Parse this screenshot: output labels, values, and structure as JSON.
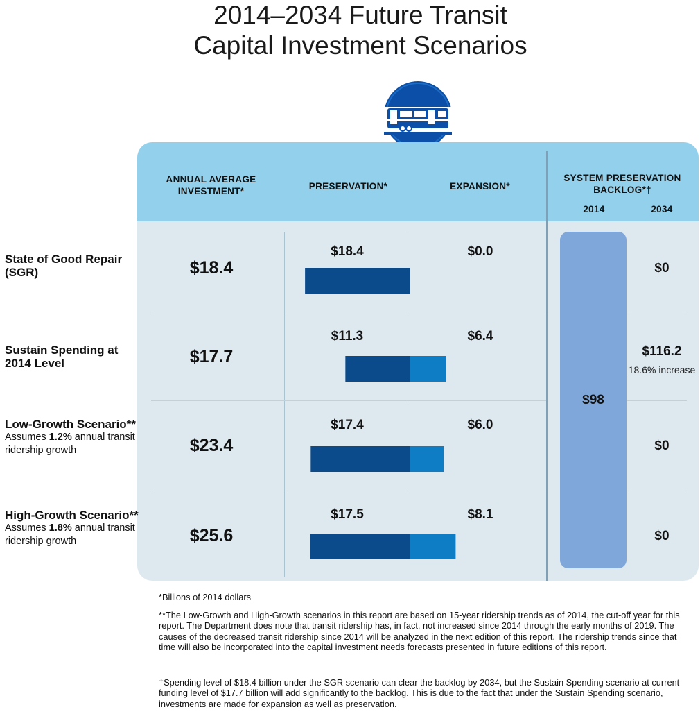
{
  "title_line1": "2014–2034 Future Transit",
  "title_line2": "Capital Investment Scenarios",
  "headers": {
    "annual": "ANNUAL AVERAGE INVESTMENT*",
    "preservation": "PRESERVATION*",
    "expansion": "EXPANSION*",
    "backlog": "SYSTEM PRESERVATION BACKLOG*†",
    "year_2014": "2014",
    "year_2034": "2034"
  },
  "rows": [
    {
      "name": "State of Good Repair (SGR)",
      "sub_pre": "",
      "sub_bold": "",
      "sub_post": "",
      "annual": "$18.4",
      "preservation_label": "$18.4",
      "expansion_label": "$0.0",
      "backlog_2034": "$0",
      "backlog_note": ""
    },
    {
      "name": "Sustain Spending at 2014 Level",
      "sub_pre": "",
      "sub_bold": "",
      "sub_post": "",
      "annual": "$17.7",
      "preservation_label": "$11.3",
      "expansion_label": "$6.4",
      "backlog_2034": "$116.2",
      "backlog_note": "18.6% increase"
    },
    {
      "name": "Low-Growth Scenario**",
      "sub_pre": "Assumes ",
      "sub_bold": "1.2%",
      "sub_post": " annual transit ridership growth",
      "annual": "$23.4",
      "preservation_label": "$17.4",
      "expansion_label": "$6.0",
      "backlog_2034": "$0",
      "backlog_note": ""
    },
    {
      "name": "High-Growth Scenario**",
      "sub_pre": "Assumes ",
      "sub_bold": "1.8%",
      "sub_post": " annual transit ridership growth",
      "annual": "$25.6",
      "preservation_label": "$17.5",
      "expansion_label": "$8.1",
      "backlog_2034": "$0",
      "backlog_note": ""
    }
  ],
  "backlog_2014": "$98",
  "footnote1": "*Billions of 2014 dollars",
  "footnote2": "**The Low-Growth and High-Growth scenarios in this report are based on 15-year ridership trends as of 2014, the cut-off year for this report.  The Department does note that transit ridership has, in fact, not increased since 2014 through the early months of 2019.  The causes of the decreased transit ridership since 2014 will be analyzed in the next edition of this report.  The ridership trends since that time will also be incorporated into the capital investment needs forecasts presented in future editions of this report.",
  "footnote3": "†Spending level of $18.4 billion under the SGR scenario can clear the backlog by 2034, but the Sustain Spending scenario at current funding level of $17.7 billion will add significantly to the backlog. This is due to the fact that under the Sustain Spending scenario, investments are made for expansion as well as preservation.",
  "colors": {
    "preservation": "#0b4a8b",
    "expansion": "#0e7dc6",
    "backlog_bar": "#7fa7d9",
    "header_band": "#93d0eb",
    "panel": "#dde9ef",
    "badge": "#0b4fa8"
  },
  "chart_data": {
    "type": "bar",
    "orientation": "horizontal diverging",
    "categories": [
      "State of Good Repair (SGR)",
      "Sustain Spending at 2014 Level",
      "Low-Growth Scenario**",
      "High-Growth Scenario**"
    ],
    "series": [
      {
        "name": "PRESERVATION*",
        "values": [
          18.4,
          11.3,
          17.4,
          17.5
        ]
      },
      {
        "name": "EXPANSION*",
        "values": [
          0.0,
          6.4,
          6.0,
          8.1
        ]
      }
    ],
    "annual_average_investment": [
      18.4,
      17.7,
      23.4,
      25.6
    ],
    "backlog": {
      "2014": 98,
      "2034": [
        0,
        116.2,
        0,
        0
      ]
    },
    "units": "Billions of 2014 dollars"
  }
}
